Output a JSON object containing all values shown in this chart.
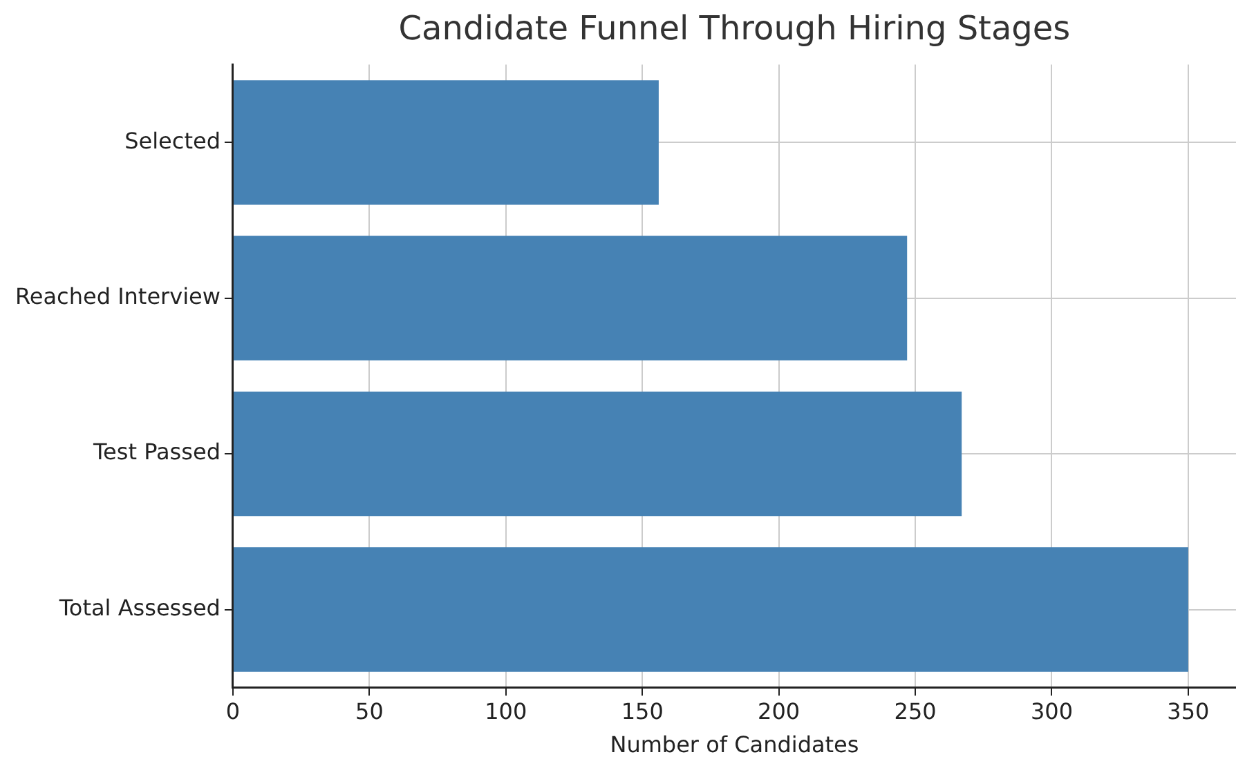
{
  "chart_data": {
    "type": "bar",
    "orientation": "horizontal",
    "title": "Candidate Funnel Through Hiring Stages",
    "xlabel": "Number of Candidates",
    "categories": [
      "Selected",
      "Reached Interview",
      "Test Passed",
      "Total Assessed"
    ],
    "values": [
      156,
      247,
      267,
      350
    ],
    "color": "#4682b4",
    "xlim": [
      0,
      367.5
    ],
    "xticks": [
      0,
      50,
      100,
      150,
      200,
      250,
      300,
      350
    ],
    "grid": true
  }
}
